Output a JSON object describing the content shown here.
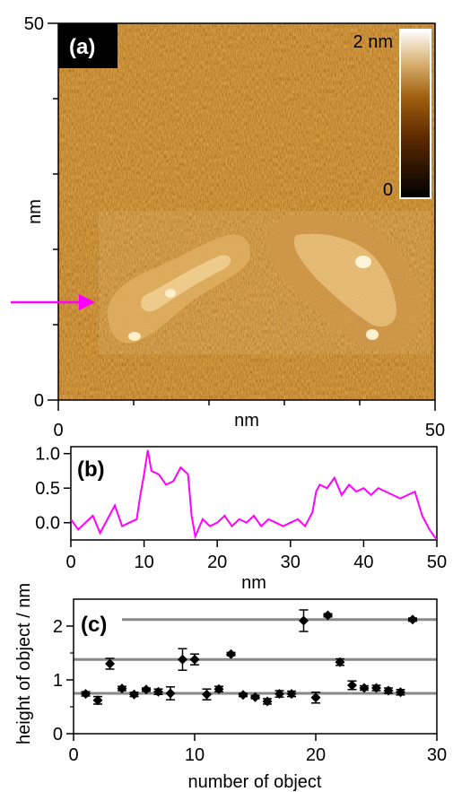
{
  "figure": {
    "panel_a_label": "(a)",
    "panel_b_label": "(b)",
    "panel_c_label": "(c)"
  },
  "colors": {
    "profile": "#ff00ff",
    "arrow": "#ff00ff",
    "reference_lines": "#888888",
    "markers": "#000000"
  },
  "chart_data": [
    {
      "type": "heatmap",
      "panel": "(a)",
      "xlabel": "nm",
      "ylabel": "nm",
      "x_ticks": [
        "0",
        "50"
      ],
      "y_ticks": [
        "0",
        "50"
      ],
      "xlim": [
        0,
        50
      ],
      "ylim": [
        0,
        50
      ],
      "colorbar": {
        "max_label": "2 nm",
        "min_label": "0",
        "range": [
          0,
          2
        ],
        "unit": "nm"
      },
      "features": [
        {
          "shape": "elongated island",
          "center_nm": [
            18,
            14
          ],
          "height_nm": 1.0
        },
        {
          "shape": "large island",
          "center_nm": [
            38,
            15
          ],
          "height_nm": 0.6
        }
      ],
      "profile_line_y_nm": 13
    },
    {
      "type": "line",
      "panel": "(b)",
      "xlabel": "nm",
      "ylabel": "",
      "x_ticks": [
        "0",
        "10",
        "20",
        "30",
        "40",
        "50"
      ],
      "y_ticks": [
        "0.0",
        "0.5",
        "1.0"
      ],
      "xlim": [
        0,
        50
      ],
      "ylim": [
        -0.25,
        1.1
      ],
      "series": [
        {
          "x": [
            0,
            1,
            2,
            3,
            4,
            5,
            6,
            7,
            8,
            9,
            9.5,
            10,
            10.5,
            11,
            12,
            13,
            14,
            15,
            16,
            16.5,
            17,
            18,
            19,
            20,
            21,
            22,
            23,
            24,
            25,
            26,
            27,
            28,
            29,
            30,
            31,
            32,
            33,
            33.5,
            34,
            35,
            36,
            37,
            38,
            39,
            40,
            41,
            42,
            43,
            44,
            45,
            46,
            47,
            48,
            49,
            50
          ],
          "y": [
            0.05,
            -0.1,
            0.0,
            0.1,
            -0.15,
            0.05,
            0.25,
            -0.05,
            0.0,
            0.05,
            0.4,
            0.7,
            1.05,
            0.75,
            0.7,
            0.55,
            0.6,
            0.8,
            0.7,
            0.1,
            -0.2,
            0.05,
            -0.05,
            0.0,
            0.1,
            -0.05,
            0.05,
            0.0,
            0.1,
            -0.05,
            0.05,
            0.0,
            -0.05,
            0.0,
            0.05,
            -0.05,
            0.15,
            0.45,
            0.55,
            0.5,
            0.65,
            0.4,
            0.55,
            0.45,
            0.5,
            0.4,
            0.5,
            0.45,
            0.4,
            0.35,
            0.4,
            0.45,
            0.1,
            -0.1,
            -0.25
          ]
        }
      ]
    },
    {
      "type": "scatter",
      "panel": "(c)",
      "xlabel": "number of object",
      "ylabel": "height of object / nm",
      "x_ticks": [
        "0",
        "10",
        "20",
        "30"
      ],
      "y_ticks": [
        "0",
        "1",
        "2"
      ],
      "xlim": [
        0,
        30
      ],
      "ylim": [
        0,
        2.5
      ],
      "reference_lines": [
        {
          "y": 0.75,
          "x_from": 0,
          "x_to": 30
        },
        {
          "y": 1.38,
          "x_from": 0,
          "x_to": 30
        },
        {
          "y": 2.12,
          "x_from": 4,
          "x_to": 30
        }
      ],
      "series": [
        {
          "x": [
            1,
            2,
            3,
            4,
            5,
            6,
            7,
            8,
            9,
            10,
            11,
            12,
            13,
            14,
            15,
            16,
            17,
            18,
            19,
            20,
            21,
            22,
            23,
            24,
            25,
            26,
            27,
            28
          ],
          "y": [
            0.74,
            0.62,
            1.3,
            0.84,
            0.73,
            0.82,
            0.78,
            0.75,
            1.38,
            1.38,
            0.73,
            0.83,
            1.48,
            0.72,
            0.68,
            0.6,
            0.74,
            0.74,
            2.1,
            0.67,
            2.2,
            1.33,
            0.9,
            0.85,
            0.85,
            0.8,
            0.77,
            2.12
          ],
          "err": [
            0.04,
            0.07,
            0.1,
            0.04,
            0.04,
            0.03,
            0.05,
            0.12,
            0.2,
            0.1,
            0.1,
            0.05,
            0.03,
            0.03,
            0.03,
            0.05,
            0.06,
            0.05,
            0.2,
            0.1,
            0.03,
            0.06,
            0.08,
            0.04,
            0.05,
            0.05,
            0.05,
            0.03
          ]
        }
      ]
    }
  ]
}
